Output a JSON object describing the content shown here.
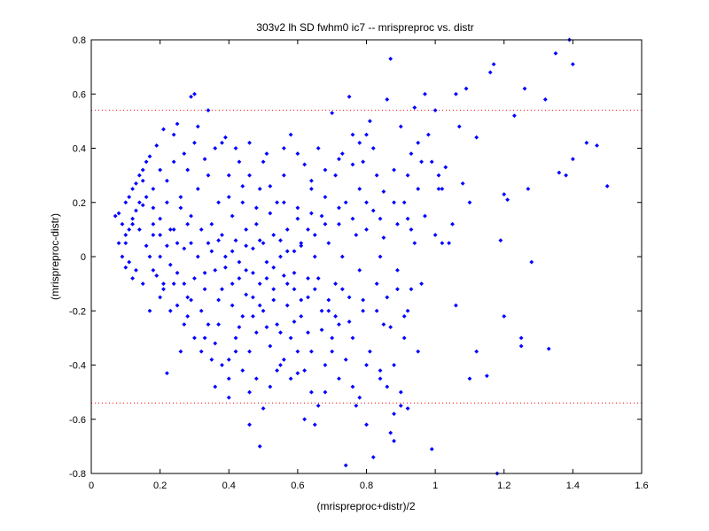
{
  "chart_data": {
    "type": "scatter",
    "title": "303v2 lh SD fwhm0 ic7 -- mrispreproc vs. distr",
    "xlabel": "(mrispreproc+distr)/2",
    "ylabel": "(mrispreproc-distr)",
    "xlim": [
      0,
      1.6
    ],
    "ylim": [
      -0.8,
      0.8
    ],
    "x_ticks": [
      "0",
      "0.2",
      "0.4",
      "0.6",
      "0.8",
      "1",
      "1.2",
      "1.4",
      "1.6"
    ],
    "y_ticks": [
      "0.8",
      "0.6",
      "0.4",
      "0.2",
      "0",
      "-0.2",
      "-0.4",
      "-0.6",
      "-0.8"
    ],
    "reference_lines": [
      {
        "y": 0.54,
        "style": "dotted",
        "color": "#ff0000"
      },
      {
        "y": -0.54,
        "style": "dotted",
        "color": "#ff0000"
      }
    ],
    "marker_color": "#0000ff",
    "grid": false,
    "points": [
      [
        0.07,
        0.15
      ],
      [
        0.08,
        0.16
      ],
      [
        0.08,
        0.05
      ],
      [
        0.09,
        0.12
      ],
      [
        0.1,
        0.2
      ],
      [
        0.1,
        0.08
      ],
      [
        0.11,
        0.22
      ],
      [
        0.11,
        -0.02
      ],
      [
        0.12,
        0.25
      ],
      [
        0.12,
        0.14
      ],
      [
        0.13,
        0.27
      ],
      [
        0.13,
        -0.05
      ],
      [
        0.14,
        0.3
      ],
      [
        0.14,
        0.1
      ],
      [
        0.15,
        0.32
      ],
      [
        0.15,
        0.19
      ],
      [
        0.16,
        0.35
      ],
      [
        0.16,
        0.04
      ],
      [
        0.17,
        0.37
      ],
      [
        0.17,
        -0.2
      ],
      [
        0.18,
        0.18
      ],
      [
        0.18,
        0.08
      ],
      [
        0.19,
        0.41
      ],
      [
        0.19,
        -0.07
      ],
      [
        0.2,
        0.14
      ],
      [
        0.2,
        0.0
      ],
      [
        0.21,
        0.47
      ],
      [
        0.21,
        -0.12
      ],
      [
        0.22,
        -0.43
      ],
      [
        0.22,
        0.2
      ],
      [
        0.23,
        0.1
      ],
      [
        0.23,
        -0.03
      ],
      [
        0.24,
        0.45
      ],
      [
        0.24,
        -0.1
      ],
      [
        0.25,
        0.49
      ],
      [
        0.25,
        0.05
      ],
      [
        0.26,
        -0.35
      ],
      [
        0.26,
        0.22
      ],
      [
        0.27,
        -0.25
      ],
      [
        0.27,
        0.03
      ],
      [
        0.28,
        0.32
      ],
      [
        0.28,
        -0.15
      ],
      [
        0.29,
        0.15
      ],
      [
        0.29,
        0.59
      ],
      [
        0.3,
        0.6
      ],
      [
        0.3,
        -0.08
      ],
      [
        0.31,
        0.48
      ],
      [
        0.31,
        0.25
      ],
      [
        0.32,
        -0.2
      ],
      [
        0.32,
        0.1
      ],
      [
        0.33,
        0.36
      ],
      [
        0.33,
        -0.3
      ],
      [
        0.34,
        0.54
      ],
      [
        0.34,
        0.05
      ],
      [
        0.35,
        0.12
      ],
      [
        0.35,
        -0.38
      ],
      [
        0.36,
        0.4
      ],
      [
        0.36,
        -0.05
      ],
      [
        0.37,
        0.2
      ],
      [
        0.37,
        -0.25
      ],
      [
        0.38,
        0.08
      ],
      [
        0.38,
        -0.12
      ],
      [
        0.39,
        0.44
      ],
      [
        0.39,
        0.0
      ],
      [
        0.4,
        0.3
      ],
      [
        0.4,
        -0.45
      ],
      [
        0.41,
        0.15
      ],
      [
        0.41,
        -0.18
      ],
      [
        0.42,
        0.06
      ],
      [
        0.42,
        -0.3
      ],
      [
        0.43,
        0.35
      ],
      [
        0.43,
        -0.08
      ],
      [
        0.44,
        0.2
      ],
      [
        0.44,
        -0.22
      ],
      [
        0.45,
        0.1
      ],
      [
        0.45,
        -0.05
      ],
      [
        0.46,
        0.42
      ],
      [
        0.46,
        -0.35
      ],
      [
        0.47,
        0.03
      ],
      [
        0.47,
        -0.15
      ],
      [
        0.48,
        0.12
      ],
      [
        0.48,
        -0.28
      ],
      [
        0.49,
        0.25
      ],
      [
        0.49,
        -0.1
      ],
      [
        0.5,
        0.05
      ],
      [
        0.5,
        -0.2
      ],
      [
        0.51,
        0.38
      ],
      [
        0.51,
        -0.02
      ],
      [
        0.52,
        0.16
      ],
      [
        0.52,
        -0.33
      ],
      [
        0.53,
        -0.12
      ],
      [
        0.53,
        0.08
      ],
      [
        0.54,
        -0.25
      ],
      [
        0.54,
        0.2
      ],
      [
        0.55,
        0.0
      ],
      [
        0.55,
        -0.4
      ],
      [
        0.56,
        0.3
      ],
      [
        0.56,
        -0.07
      ],
      [
        0.57,
        0.1
      ],
      [
        0.57,
        -0.18
      ],
      [
        0.58,
        0.45
      ],
      [
        0.58,
        -0.3
      ],
      [
        0.59,
        0.02
      ],
      [
        0.59,
        -0.12
      ],
      [
        0.6,
        0.18
      ],
      [
        0.6,
        -0.43
      ],
      [
        0.61,
        0.05
      ],
      [
        0.61,
        -0.22
      ],
      [
        0.62,
        0.34
      ],
      [
        0.62,
        -0.6
      ],
      [
        0.63,
        0.1
      ],
      [
        0.63,
        -0.15
      ],
      [
        0.64,
        0.25
      ],
      [
        0.64,
        -0.35
      ],
      [
        0.65,
        0.0
      ],
      [
        0.65,
        -0.62
      ],
      [
        0.66,
        0.4
      ],
      [
        0.66,
        -0.08
      ],
      [
        0.67,
        0.15
      ],
      [
        0.67,
        -0.27
      ],
      [
        0.68,
        0.22
      ],
      [
        0.68,
        -0.5
      ],
      [
        0.69,
        0.05
      ],
      [
        0.69,
        -0.2
      ],
      [
        0.7,
        0.53
      ],
      [
        0.7,
        -0.35
      ],
      [
        0.71,
        0.3
      ],
      [
        0.71,
        -0.1
      ],
      [
        0.72,
        0.12
      ],
      [
        0.72,
        -0.45
      ],
      [
        0.73,
        0.38
      ],
      [
        0.73,
        0.0
      ],
      [
        0.74,
        -0.77
      ],
      [
        0.74,
        0.2
      ],
      [
        0.75,
        0.59
      ],
      [
        0.75,
        -0.15
      ],
      [
        0.76,
        0.45
      ],
      [
        0.76,
        -0.3
      ],
      [
        0.77,
        0.08
      ],
      [
        0.77,
        -0.55
      ],
      [
        0.78,
        0.25
      ],
      [
        0.78,
        -0.05
      ],
      [
        0.79,
        0.35
      ],
      [
        0.79,
        -0.2
      ],
      [
        0.8,
        0.1
      ],
      [
        0.8,
        -0.62
      ],
      [
        0.81,
        0.5
      ],
      [
        0.81,
        -0.35
      ],
      [
        0.82,
        0.17
      ],
      [
        0.82,
        -0.74
      ],
      [
        0.83,
        0.3
      ],
      [
        0.83,
        -0.1
      ],
      [
        0.84,
        0.0
      ],
      [
        0.84,
        -0.45
      ],
      [
        0.85,
        0.24
      ],
      [
        0.85,
        -0.25
      ],
      [
        0.86,
        0.58
      ],
      [
        0.86,
        -0.15
      ],
      [
        0.87,
        0.73
      ],
      [
        0.87,
        -0.65
      ],
      [
        0.88,
        0.32
      ],
      [
        0.88,
        -0.4
      ],
      [
        0.89,
        0.12
      ],
      [
        0.89,
        -0.05
      ],
      [
        0.9,
        0.48
      ],
      [
        0.9,
        -0.55
      ],
      [
        0.91,
        0.2
      ],
      [
        0.91,
        -0.3
      ],
      [
        0.92,
        0.3
      ],
      [
        0.92,
        -0.2
      ],
      [
        0.93,
        0.1
      ],
      [
        0.93,
        -0.12
      ],
      [
        0.94,
        0.55
      ],
      [
        0.94,
        0.05
      ],
      [
        0.95,
        0.25
      ],
      [
        0.95,
        -0.35
      ],
      [
        0.96,
        0.35
      ],
      [
        0.96,
        -0.1
      ],
      [
        0.97,
        0.6
      ],
      [
        0.97,
        0.15
      ],
      [
        0.99,
        0.35
      ],
      [
        0.99,
        -0.71
      ],
      [
        1.0,
        0.54
      ],
      [
        1.0,
        0.08
      ],
      [
        1.01,
        0.3
      ],
      [
        1.01,
        0.25
      ],
      [
        1.02,
        0.25
      ],
      [
        1.02,
        0.05
      ],
      [
        1.03,
        0.33
      ],
      [
        1.04,
        0.05
      ],
      [
        1.05,
        0.12
      ],
      [
        1.06,
        0.6
      ],
      [
        1.07,
        0.48
      ],
      [
        1.08,
        0.27
      ],
      [
        1.09,
        0.62
      ],
      [
        1.1,
        0.2
      ],
      [
        1.1,
        -0.45
      ],
      [
        1.12,
        0.44
      ],
      [
        1.15,
        -0.44
      ],
      [
        1.16,
        0.68
      ],
      [
        1.17,
        0.71
      ],
      [
        1.18,
        -0.8
      ],
      [
        1.19,
        0.06
      ],
      [
        1.2,
        0.23
      ],
      [
        1.21,
        0.21
      ],
      [
        1.23,
        0.52
      ],
      [
        1.25,
        -0.3
      ],
      [
        1.26,
        0.62
      ],
      [
        1.27,
        0.25
      ],
      [
        1.28,
        -0.02
      ],
      [
        1.32,
        0.58
      ],
      [
        1.33,
        -0.34
      ],
      [
        1.35,
        0.75
      ],
      [
        1.36,
        0.31
      ],
      [
        1.38,
        0.3
      ],
      [
        1.39,
        0.8
      ],
      [
        1.4,
        0.36
      ],
      [
        1.4,
        0.71
      ],
      [
        1.44,
        0.42
      ],
      [
        1.47,
        0.41
      ],
      [
        1.5,
        0.26
      ],
      [
        1.06,
        -0.18
      ],
      [
        1.12,
        -0.35
      ],
      [
        1.25,
        -0.33
      ],
      [
        1.2,
        -0.22
      ],
      [
        0.98,
        0.45
      ],
      [
        0.95,
        0.42
      ],
      [
        0.93,
        0.38
      ],
      [
        0.8,
        0.45
      ],
      [
        0.82,
        0.4
      ],
      [
        0.78,
        0.42
      ],
      [
        0.76,
        0.34
      ],
      [
        0.72,
        0.36
      ],
      [
        0.68,
        0.32
      ],
      [
        0.64,
        0.28
      ],
      [
        0.6,
        0.38
      ],
      [
        0.56,
        0.4
      ],
      [
        0.5,
        0.35
      ],
      [
        0.46,
        0.3
      ],
      [
        0.42,
        0.4
      ],
      [
        0.38,
        0.42
      ],
      [
        0.34,
        0.3
      ],
      [
        0.3,
        0.42
      ],
      [
        0.27,
        0.38
      ],
      [
        0.24,
        0.35
      ],
      [
        0.22,
        0.28
      ],
      [
        0.2,
        0.32
      ],
      [
        0.18,
        0.25
      ],
      [
        0.16,
        0.22
      ],
      [
        0.15,
        0.28
      ],
      [
        0.14,
        0.2
      ],
      [
        0.13,
        0.17
      ],
      [
        0.12,
        0.12
      ],
      [
        0.11,
        0.1
      ],
      [
        0.1,
        0.05
      ],
      [
        0.09,
        0.0
      ],
      [
        0.1,
        -0.04
      ],
      [
        0.12,
        -0.08
      ],
      [
        0.15,
        -0.1
      ],
      [
        0.18,
        -0.05
      ],
      [
        0.2,
        -0.15
      ],
      [
        0.23,
        -0.2
      ],
      [
        0.25,
        -0.18
      ],
      [
        0.28,
        -0.22
      ],
      [
        0.3,
        -0.3
      ],
      [
        0.32,
        -0.35
      ],
      [
        0.34,
        -0.25
      ],
      [
        0.36,
        -0.32
      ],
      [
        0.38,
        -0.4
      ],
      [
        0.4,
        -0.38
      ],
      [
        0.42,
        -0.35
      ],
      [
        0.44,
        -0.42
      ],
      [
        0.46,
        -0.5
      ],
      [
        0.48,
        -0.45
      ],
      [
        0.49,
        -0.7
      ],
      [
        0.5,
        -0.56
      ],
      [
        0.52,
        -0.48
      ],
      [
        0.54,
        -0.42
      ],
      [
        0.56,
        -0.38
      ],
      [
        0.58,
        -0.45
      ],
      [
        0.6,
        -0.35
      ],
      [
        0.62,
        -0.42
      ],
      [
        0.64,
        -0.5
      ],
      [
        0.66,
        -0.55
      ],
      [
        0.68,
        -0.4
      ],
      [
        0.7,
        -0.3
      ],
      [
        0.72,
        -0.25
      ],
      [
        0.74,
        -0.38
      ],
      [
        0.76,
        -0.48
      ],
      [
        0.78,
        -0.52
      ],
      [
        0.8,
        -0.4
      ],
      [
        0.84,
        -0.42
      ],
      [
        0.86,
        -0.48
      ],
      [
        0.88,
        -0.58
      ],
      [
        0.9,
        -0.5
      ],
      [
        0.92,
        -0.56
      ],
      [
        0.88,
        -0.68
      ],
      [
        0.46,
        -0.62
      ],
      [
        0.4,
        -0.52
      ],
      [
        0.36,
        -0.48
      ],
      [
        0.27,
        -0.1
      ],
      [
        0.29,
        0.05
      ],
      [
        0.31,
        0.0
      ],
      [
        0.33,
        -0.06
      ],
      [
        0.35,
        0.02
      ],
      [
        0.37,
        0.06
      ],
      [
        0.39,
        -0.04
      ],
      [
        0.41,
        0.02
      ],
      [
        0.43,
        -0.02
      ],
      [
        0.45,
        0.04
      ],
      [
        0.47,
        -0.06
      ],
      [
        0.49,
        0.06
      ],
      [
        0.51,
        -0.08
      ],
      [
        0.53,
        -0.04
      ],
      [
        0.55,
        0.06
      ],
      [
        0.57,
        0.02
      ],
      [
        0.59,
        -0.06
      ],
      [
        0.61,
        0.04
      ],
      [
        0.63,
        -0.08
      ],
      [
        0.65,
        0.08
      ],
      [
        0.4,
        0.22
      ],
      [
        0.44,
        0.26
      ],
      [
        0.48,
        0.18
      ],
      [
        0.52,
        0.26
      ],
      [
        0.56,
        0.2
      ],
      [
        0.6,
        0.14
      ],
      [
        0.64,
        0.16
      ],
      [
        0.68,
        0.12
      ],
      [
        0.72,
        0.18
      ],
      [
        0.76,
        0.14
      ],
      [
        0.8,
        0.2
      ],
      [
        0.84,
        0.14
      ],
      [
        0.88,
        0.2
      ],
      [
        0.92,
        0.14
      ],
      [
        0.28,
        0.12
      ],
      [
        0.26,
        0.18
      ],
      [
        0.24,
        0.1
      ],
      [
        0.22,
        0.04
      ],
      [
        0.2,
        0.08
      ],
      [
        0.18,
        0.12
      ],
      [
        0.43,
        -0.26
      ],
      [
        0.47,
        -0.22
      ],
      [
        0.51,
        -0.26
      ],
      [
        0.55,
        -0.28
      ],
      [
        0.59,
        -0.24
      ],
      [
        0.63,
        -0.28
      ],
      [
        0.67,
        -0.2
      ],
      [
        0.71,
        -0.22
      ],
      [
        0.75,
        -0.24
      ],
      [
        0.79,
        -0.16
      ],
      [
        0.83,
        -0.2
      ],
      [
        0.87,
        -0.26
      ],
      [
        0.91,
        -0.22
      ],
      [
        0.85,
        0.07
      ],
      [
        0.89,
        -0.12
      ],
      [
        0.73,
        -0.12
      ],
      [
        0.69,
        -0.16
      ],
      [
        0.65,
        -0.12
      ],
      [
        0.61,
        -0.16
      ],
      [
        0.57,
        -0.1
      ],
      [
        0.53,
        -0.16
      ],
      [
        0.49,
        -0.18
      ],
      [
        0.45,
        -0.14
      ],
      [
        0.41,
        -0.1
      ],
      [
        0.37,
        -0.16
      ],
      [
        0.33,
        -0.12
      ],
      [
        0.29,
        -0.16
      ],
      [
        0.25,
        -0.06
      ],
      [
        0.21,
        -0.1
      ],
      [
        0.17,
        0.0
      ]
    ]
  }
}
